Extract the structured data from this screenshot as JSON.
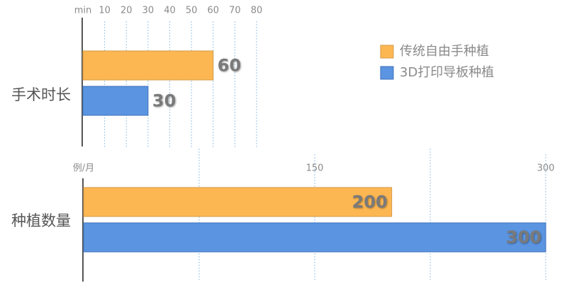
{
  "chart_data": [
    {
      "type": "bar",
      "orientation": "horizontal",
      "x_label": "min",
      "categories": [
        "手术时长"
      ],
      "series": [
        {
          "name": "传统自由手种植",
          "color": "#fdb752",
          "values": [
            60
          ]
        },
        {
          "name": "3D打印导板种植",
          "color": "#5b94e0",
          "values": [
            30
          ]
        }
      ],
      "xlim": [
        0,
        80
      ],
      "xticks": [
        10,
        20,
        30,
        40,
        50,
        60,
        70,
        80
      ],
      "grid": true,
      "label_position": "outside",
      "legend": "upper right"
    },
    {
      "type": "bar",
      "orientation": "horizontal",
      "x_label": "例/月",
      "categories": [
        "种植数量"
      ],
      "series": [
        {
          "color": "#fdb752",
          "values": [
            200
          ]
        },
        {
          "color": "#5b94e0",
          "values": [
            300
          ]
        }
      ],
      "xlim": [
        0,
        300
      ],
      "xticks": [
        150,
        300
      ],
      "minor_xticks": [
        75,
        225
      ],
      "grid": true,
      "label_position": "inside"
    }
  ]
}
